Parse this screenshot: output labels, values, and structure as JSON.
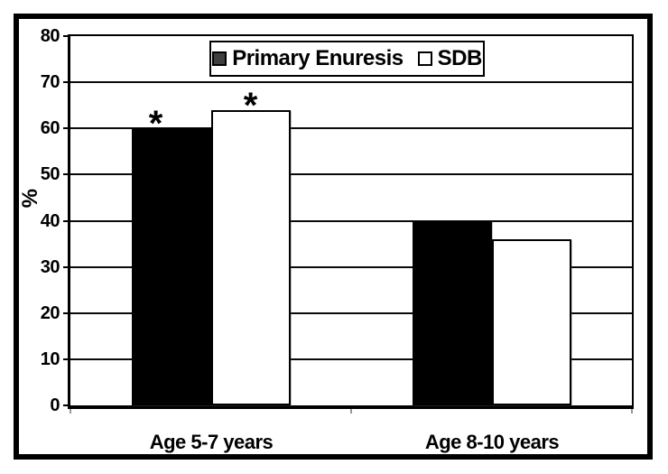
{
  "chart_data": {
    "type": "bar",
    "title": "",
    "categories": [
      "Age 5-7 years",
      "Age 8-10 years"
    ],
    "series": [
      {
        "name": "Primary Enuresis",
        "fill": "#000000",
        "stroke": "#000000",
        "legend_swatch_fill": "#3f3f3f",
        "values": [
          60,
          40
        ],
        "annotations": [
          "*",
          ""
        ],
        "annotation_dx": -17
      },
      {
        "name": "SDB",
        "fill": "#ffffff",
        "stroke": "#000000",
        "legend_swatch_fill": "#ffffff",
        "values": [
          64,
          36
        ],
        "annotations": [
          "*",
          ""
        ],
        "annotation_dx": 0
      }
    ],
    "xlabel": "",
    "ylabel": "%",
    "ylim": [
      0,
      80
    ],
    "yticks": [
      0,
      10,
      20,
      30,
      40,
      50,
      60,
      70,
      80
    ],
    "grid": true,
    "legend_position": "top-center",
    "colors": {
      "axis": "#000000",
      "gridline": "#0a0a0a",
      "frame_border": "#000000",
      "background": "#ffffff"
    }
  }
}
